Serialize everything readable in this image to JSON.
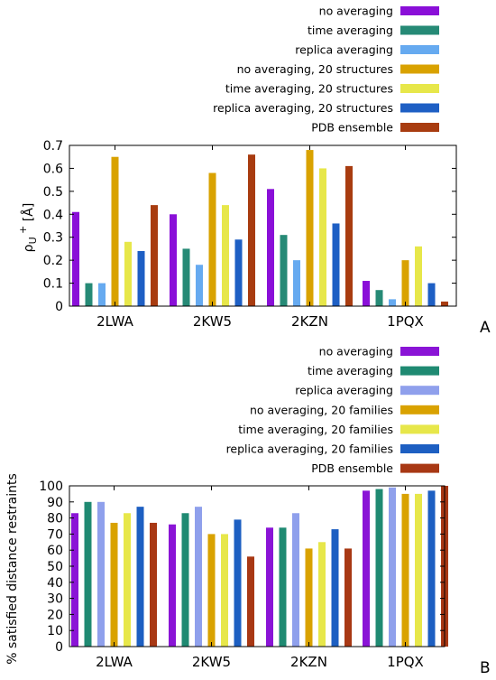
{
  "chart_data": [
    {
      "panel": "A",
      "type": "bar",
      "ylabel": "ρU+ [Å]",
      "ylim": [
        0,
        0.7
      ],
      "yticks": [
        "0",
        "0.1",
        "0.2",
        "0.3",
        "0.4",
        "0.5",
        "0.6",
        "0.7"
      ],
      "categories": [
        "2LWA",
        "2KW5",
        "2KZN",
        "1PQX"
      ],
      "legend_position": "top-right",
      "series": [
        {
          "name": "no averaging",
          "color": "#8a0fd8",
          "values": [
            0.41,
            0.4,
            0.51,
            0.11
          ]
        },
        {
          "name": "time averaging",
          "color": "#268a76",
          "values": [
            0.1,
            0.25,
            0.31,
            0.07
          ]
        },
        {
          "name": "replica averaging",
          "color": "#66aaf0",
          "values": [
            0.1,
            0.18,
            0.2,
            0.03
          ]
        },
        {
          "name": "no averaging, 20 structures",
          "color": "#d9a200",
          "values": [
            0.65,
            0.58,
            0.68,
            0.2
          ]
        },
        {
          "name": "time averaging, 20 structures",
          "color": "#e7e74a",
          "values": [
            0.28,
            0.44,
            0.6,
            0.26
          ]
        },
        {
          "name": "replica averaging, 20 structures",
          "color": "#1e5fc4",
          "values": [
            0.24,
            0.29,
            0.36,
            0.1
          ]
        },
        {
          "name": "PDB ensemble",
          "color": "#a83c10",
          "values": [
            0.44,
            0.66,
            0.61,
            0.02
          ]
        }
      ]
    },
    {
      "panel": "B",
      "type": "bar",
      "ylabel": "% satisfied distance restraints",
      "ylim": [
        0,
        100
      ],
      "yticks": [
        "0",
        "10",
        "20",
        "30",
        "40",
        "50",
        "60",
        "70",
        "80",
        "90",
        "100"
      ],
      "categories": [
        "2LWA",
        "2KW5",
        "2KZN",
        "1PQX"
      ],
      "legend_position": "top-right",
      "series": [
        {
          "name": "no averaging",
          "color": "#8a14d6",
          "values": [
            83,
            76,
            74,
            97
          ]
        },
        {
          "name": "time averaging",
          "color": "#1f8a72",
          "values": [
            90,
            83,
            74,
            98
          ]
        },
        {
          "name": "replica averaging",
          "color": "#8fa0ec",
          "values": [
            90,
            87,
            83,
            99
          ]
        },
        {
          "name": "no averaging, 20 families",
          "color": "#d9a200",
          "values": [
            77,
            70,
            61,
            95
          ]
        },
        {
          "name": "time averaging, 20 families",
          "color": "#e7e74a",
          "values": [
            83,
            70,
            65,
            95
          ]
        },
        {
          "name": "replica averaging, 20 families",
          "color": "#1d5fc2",
          "values": [
            87,
            79,
            73,
            97
          ]
        },
        {
          "name": "PDB ensemble",
          "color": "#a83814",
          "values": [
            77,
            56,
            61,
            100
          ]
        }
      ]
    }
  ]
}
